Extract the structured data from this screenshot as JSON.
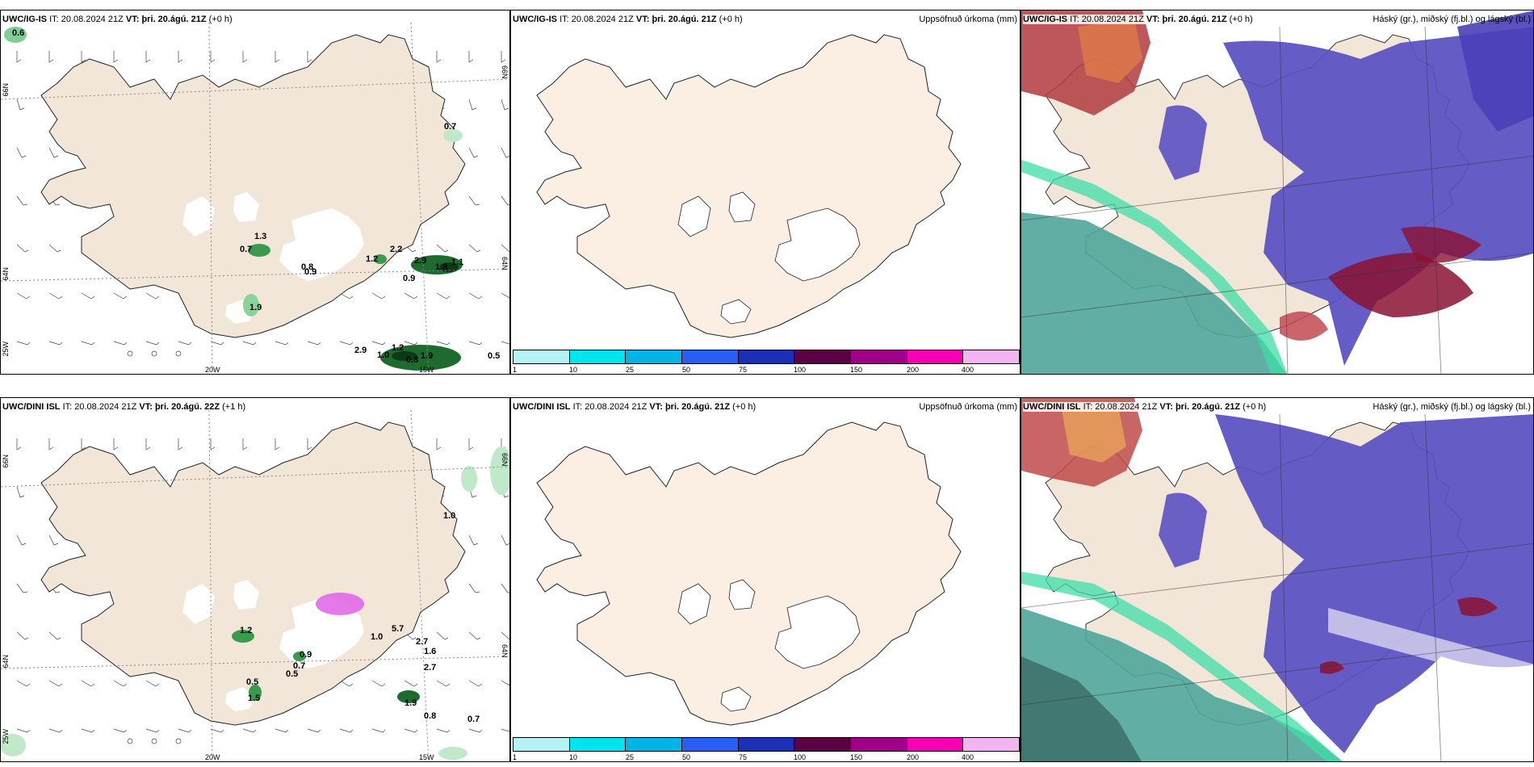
{
  "panels": [
    {
      "model": "UWC/IG-IS",
      "it_label": "IT:",
      "it": "20.08.2024 21Z",
      "vt_label": "VT:",
      "vt": "þri. 20.ágú. 21Z",
      "lead": "(+0 h)",
      "right": ""
    },
    {
      "model": "UWC/IG-IS",
      "it_label": "IT:",
      "it": "20.08.2024 21Z",
      "vt_label": "VT:",
      "vt": "þri. 20.ágú. 21Z",
      "lead": "(+0 h)",
      "right": "Uppsöfnuð úrkoma (mm)"
    },
    {
      "model": "UWC/IG-IS",
      "it_label": "IT:",
      "it": "20.08.2024 21Z",
      "vt_label": "VT:",
      "vt": "þri. 20.ágú. 21Z",
      "lead": "(+0 h)",
      "right": "Háský (gr.), miðský (fj.bl.) og lágský (bl.)"
    },
    {
      "model": "UWC/DINI ISL",
      "it_label": "IT:",
      "it": "20.08.2024 21Z",
      "vt_label": "VT:",
      "vt": "þri. 20.ágú. 22Z",
      "lead": "(+1 h)",
      "right": ""
    },
    {
      "model": "UWC/DINI ISL",
      "it_label": "IT:",
      "it": "20.08.2024 21Z",
      "vt_label": "VT:",
      "vt": "þri. 20.ágú. 21Z",
      "lead": "(+0 h)",
      "right": "Uppsöfnuð úrkoma (mm)"
    },
    {
      "model": "UWC/DINI ISL",
      "it_label": "IT:",
      "it": "20.08.2024 21Z",
      "vt_label": "VT:",
      "vt": "þri. 20.ágú. 21Z",
      "lead": "(+0 h)",
      "right": "Háský (gr.), miðský (fj.bl.) og lágský (bl.)"
    }
  ],
  "grid_labels": {
    "lat66": "66N",
    "lat64": "64N",
    "lon20": "20W",
    "lon15": "15W",
    "lon25": "25W"
  },
  "precip_labels_top": [
    "0.6",
    "0.7",
    "1.3",
    "0.7",
    "0.8",
    "0.9",
    "1.2",
    "2.2",
    "2.9",
    "1.8",
    "1.1",
    "0.9",
    "1.9",
    "2.9",
    "1.0",
    "1.2",
    "0.8",
    "1.9",
    "0.5"
  ],
  "precip_labels_bottom": [
    "1.0",
    "1.2",
    "0.9",
    "0.7",
    "0.5",
    "0.5",
    "1.5",
    "1.0",
    "5.7",
    "2.7",
    "1.6",
    "2.7",
    "1.9",
    "0.8",
    "0.7"
  ],
  "colorbar": {
    "colors": [
      "#b4f2f6",
      "#00e5ec",
      "#00b4e6",
      "#2a5df5",
      "#1c2fb8",
      "#5b0044",
      "#a00087",
      "#f500b2",
      "#f4b4f2"
    ],
    "ticks": [
      "1",
      "10",
      "25",
      "50",
      "75",
      "100",
      "150",
      "200",
      "400"
    ]
  }
}
